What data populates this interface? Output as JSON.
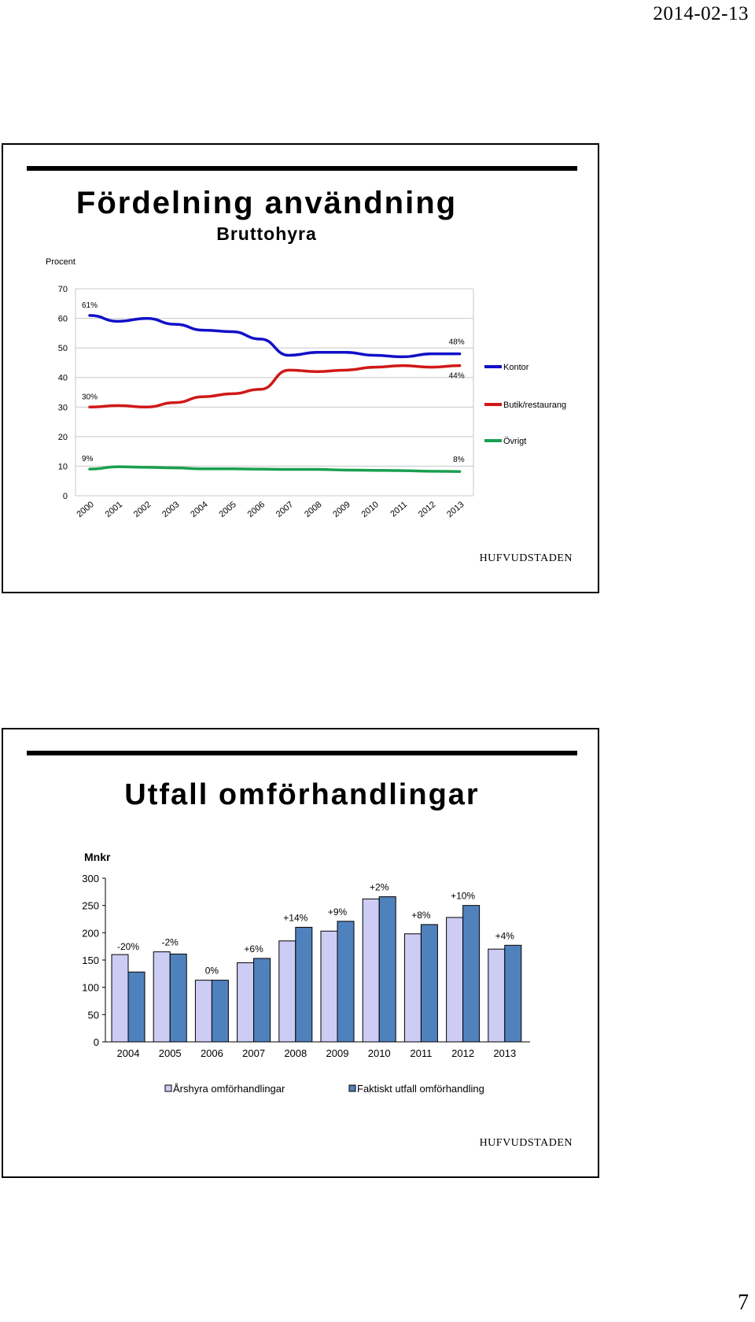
{
  "page": {
    "date": "2014-02-13",
    "page_number": "7",
    "logo": "HUFVUDSTADEN"
  },
  "slide1": {
    "title": "Fördelning användning",
    "subtitle": "Bruttohyra",
    "ylabel": "Procent"
  },
  "slide2": {
    "title": "Utfall omförhandlingar",
    "ylabel": "Mnkr"
  },
  "chart_data": [
    {
      "type": "line",
      "title": "Fördelning användning",
      "subtitle": "Bruttohyra",
      "ylabel": "Procent",
      "xlabel": "",
      "ylim": [
        0,
        70
      ],
      "yticks": [
        "0",
        "10",
        "20",
        "30",
        "40",
        "50",
        "60",
        "70"
      ],
      "x": [
        "2000",
        "2001",
        "2002",
        "2003",
        "2004",
        "2005",
        "2006",
        "2007",
        "2008",
        "2009",
        "2010",
        "2011",
        "2012",
        "2013"
      ],
      "grid": true,
      "legend_position": "right",
      "series": [
        {
          "name": "Kontor",
          "color": "#1010c8",
          "values": [
            61,
            59,
            60,
            58,
            56,
            55.5,
            53,
            47.5,
            48.5,
            48.5,
            47.5,
            47,
            48,
            48
          ],
          "start_label": "61%",
          "end_label": "48%"
        },
        {
          "name": "Butik/restaurang",
          "color": "#d01818",
          "values": [
            30,
            30.5,
            30,
            31.5,
            33.5,
            34.5,
            36,
            42.5,
            42,
            42.5,
            43.5,
            44,
            43.5,
            44
          ],
          "start_label": "30%",
          "end_label": "44%"
        },
        {
          "name": "Övrigt",
          "color": "#18a050",
          "values": [
            9,
            9.8,
            9.6,
            9.4,
            9.1,
            9.1,
            9.0,
            8.9,
            8.9,
            8.7,
            8.6,
            8.5,
            8.3,
            8.2
          ],
          "start_label": "9%",
          "end_label": "8%"
        }
      ]
    },
    {
      "type": "bar",
      "title": "Utfall omförhandlingar",
      "ylabel": "Mnkr",
      "xlabel": "",
      "ylim": [
        0,
        300
      ],
      "yticks": [
        "0",
        "50",
        "100",
        "150",
        "200",
        "250",
        "300"
      ],
      "categories": [
        "2004",
        "2005",
        "2006",
        "2007",
        "2008",
        "2009",
        "2010",
        "2011",
        "2012",
        "2013"
      ],
      "grid": false,
      "legend_position": "bottom",
      "series": [
        {
          "name": "Årshyra omförhandlingar",
          "color": "#ccccf4",
          "values": [
            160,
            165,
            113,
            145,
            185,
            203,
            262,
            198,
            228,
            170
          ]
        },
        {
          "name": "Faktiskt utfall omförhandling",
          "color": "#4f81bd",
          "values": [
            128,
            161,
            113,
            153,
            210,
            221,
            266,
            215,
            250,
            177
          ]
        }
      ],
      "bar_labels": [
        "-20%",
        "-2%",
        "0%",
        "+6%",
        "+14%",
        "+9%",
        "+2%",
        "+8%",
        "+10%",
        "+4%"
      ]
    }
  ]
}
